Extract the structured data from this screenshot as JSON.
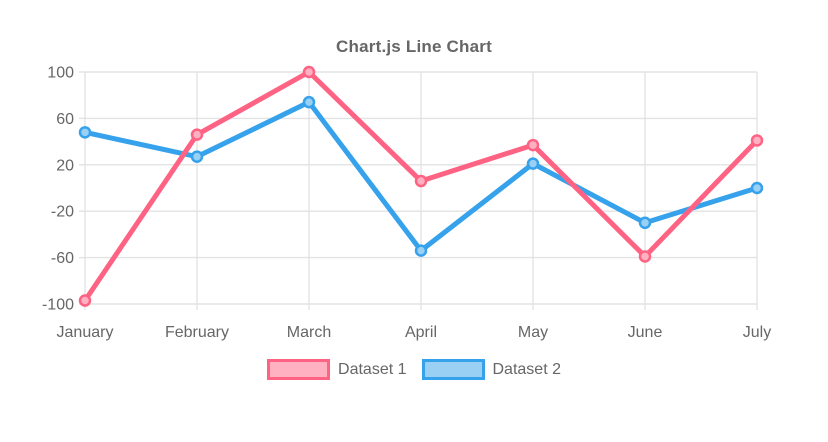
{
  "chart_data": {
    "type": "line",
    "title": "Chart.js Line Chart",
    "categories": [
      "January",
      "February",
      "March",
      "April",
      "May",
      "June",
      "July"
    ],
    "series": [
      {
        "name": "Dataset 1",
        "color": "#FF6384",
        "point_fill": "#FFB1C1",
        "values": [
          -97,
          46,
          100,
          6,
          37,
          -59,
          41
        ]
      },
      {
        "name": "Dataset 2",
        "color": "#36A2EB",
        "point_fill": "#9BD0F5",
        "values": [
          48,
          27,
          74,
          -54,
          21,
          -30,
          0
        ]
      }
    ],
    "xlabel": "",
    "ylabel": "",
    "ylim": [
      -100,
      100
    ],
    "yticks": [
      100,
      60,
      20,
      -20,
      -60,
      -100
    ],
    "grid": true,
    "legend_position": "bottom",
    "text_color": "#666666",
    "grid_color": "#e3e3e3",
    "background": "#ffffff"
  }
}
